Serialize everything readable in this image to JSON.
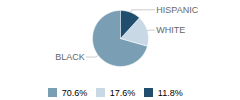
{
  "chart_data": {
    "type": "pie",
    "categories": [
      "BLACK",
      "WHITE",
      "HISPANIC"
    ],
    "values": [
      70.6,
      17.6,
      11.8
    ],
    "value_labels": [
      "70.6%",
      "17.6%",
      "11.8%"
    ],
    "colors": [
      "#7a9fb5",
      "#c8d8e4",
      "#1f4e6e"
    ],
    "legend": "bottom"
  }
}
